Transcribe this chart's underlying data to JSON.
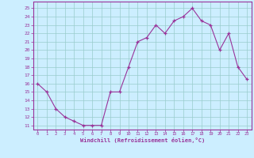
{
  "x": [
    0,
    1,
    2,
    3,
    4,
    5,
    6,
    7,
    8,
    9,
    10,
    11,
    12,
    13,
    14,
    15,
    16,
    17,
    18,
    19,
    20,
    21,
    22,
    23
  ],
  "y": [
    16,
    15,
    13,
    12,
    11.5,
    11,
    11,
    11,
    15,
    15,
    18,
    21,
    21.5,
    23,
    22,
    23.5,
    24,
    25,
    23.5,
    23,
    20,
    22,
    18,
    16.5
  ],
  "line_color": "#993399",
  "bg_color": "#cceeff",
  "grid_color": "#99cccc",
  "xlabel": "Windchill (Refroidissement éolien,°C)",
  "xlabel_color": "#993399",
  "ylabel_ticks": [
    11,
    12,
    13,
    14,
    15,
    16,
    17,
    18,
    19,
    20,
    21,
    22,
    23,
    24,
    25
  ],
  "xlim": [
    -0.5,
    23.5
  ],
  "ylim": [
    10.5,
    25.8
  ],
  "xticks": [
    0,
    1,
    2,
    3,
    4,
    5,
    6,
    7,
    8,
    9,
    10,
    11,
    12,
    13,
    14,
    15,
    16,
    17,
    18,
    19,
    20,
    21,
    22,
    23
  ]
}
